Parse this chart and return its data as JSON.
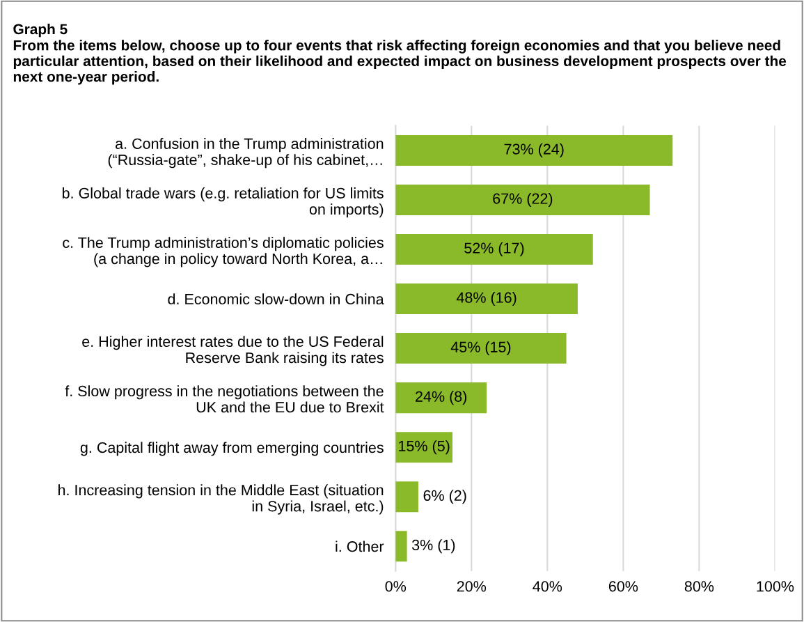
{
  "chart_data": {
    "type": "bar",
    "orientation": "horizontal",
    "title": "Graph 5",
    "subtitle": "From the items below, choose up to four events that risk affecting foreign economies and that you believe need particular attention, based on their likelihood and expected impact on business development prospects over the next one-year period.",
    "categories": [
      "a. Confusion in the Trump administration\n(“Russia-gate”, shake-up of his cabinet,…",
      "b. Global trade wars (e.g. retaliation for US limits\non imports)",
      "c. The Trump administration’s diplomatic policies\n(a change in policy toward North Korea, a…",
      "d. Economic slow-down in China",
      "e. Higher interest rates due to the US Federal\nReserve Bank raising its rates",
      "f. Slow progress in the negotiations between the\nUK and the EU due to Brexit",
      "g. Capital flight away from emerging countries",
      "h. Increasing tension in the Middle East (situation\nin Syria, Israel, etc.)",
      "i. Other"
    ],
    "values": [
      73,
      67,
      52,
      48,
      45,
      24,
      15,
      6,
      3
    ],
    "value_labels": [
      "73% (24)",
      "67% (22)",
      "52% (17)",
      "48% (16)",
      "45% (15)",
      "24% (8)",
      "15% (5)",
      "6% (2)",
      "3% (1)"
    ],
    "color": "#8aba2a",
    "xlim": [
      0,
      100
    ],
    "xticks": [
      {
        "value": 0,
        "label": "0%"
      },
      {
        "value": 20,
        "label": "20%"
      },
      {
        "value": 40,
        "label": "40%"
      },
      {
        "value": 60,
        "label": "60%"
      },
      {
        "value": 80,
        "label": "80%"
      },
      {
        "value": 100,
        "label": "100%"
      }
    ],
    "grid": "x",
    "legend": false
  }
}
